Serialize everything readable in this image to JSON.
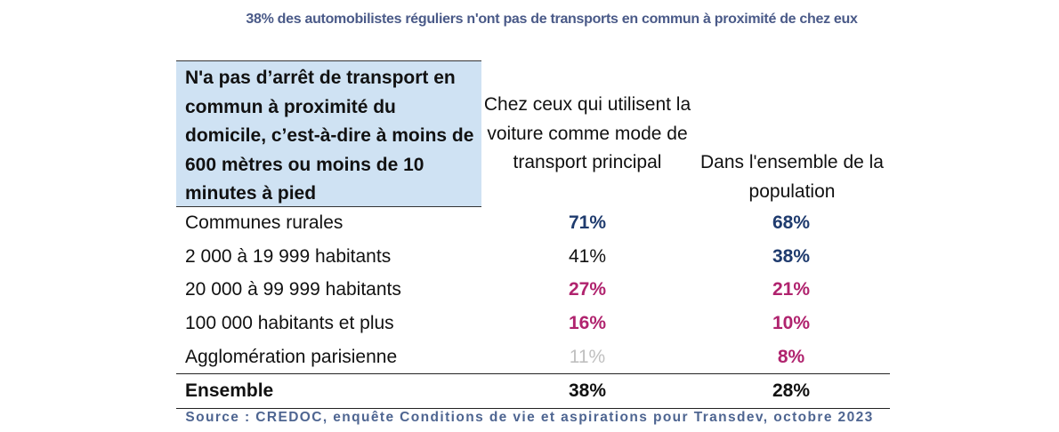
{
  "title": "38% des automobilistes réguliers n'ont pas de transports en commun à proximité de chez eux",
  "header": {
    "row_header": "N'a pas d’arrêt de transport en commun à proximité du domicile, c’est-à-dire à moins de 600 mètres ou moins de 10 minutes à pied",
    "col1": "Chez ceux qui utilisent la voiture comme mode de transport principal",
    "col2": "Dans l'ensemble de la population"
  },
  "colors": {
    "blue": "#1f3b6e",
    "magenta": "#b0236e",
    "grey": "#c0c0c0",
    "black": "#111111"
  },
  "rows": [
    {
      "label": "Communes rurales",
      "v1": "71%",
      "v2": "68%"
    },
    {
      "label": "2 000 à 19 999 habitants",
      "v1": "41%",
      "v2": "38%"
    },
    {
      "label": "20 000 à 99 999 habitants",
      "v1": "27%",
      "v2": "21%"
    },
    {
      "label": "100 000 habitants et plus",
      "v1": "16%",
      "v2": "10%"
    },
    {
      "label": "Agglomération parisienne",
      "v1": "11%",
      "v2": "8%"
    },
    {
      "label": "Ensemble",
      "v1": "38%",
      "v2": "28%"
    }
  ],
  "source": "Source : CREDOC, enquête Conditions de vie et aspirations pour Transdev, octobre 2023"
}
